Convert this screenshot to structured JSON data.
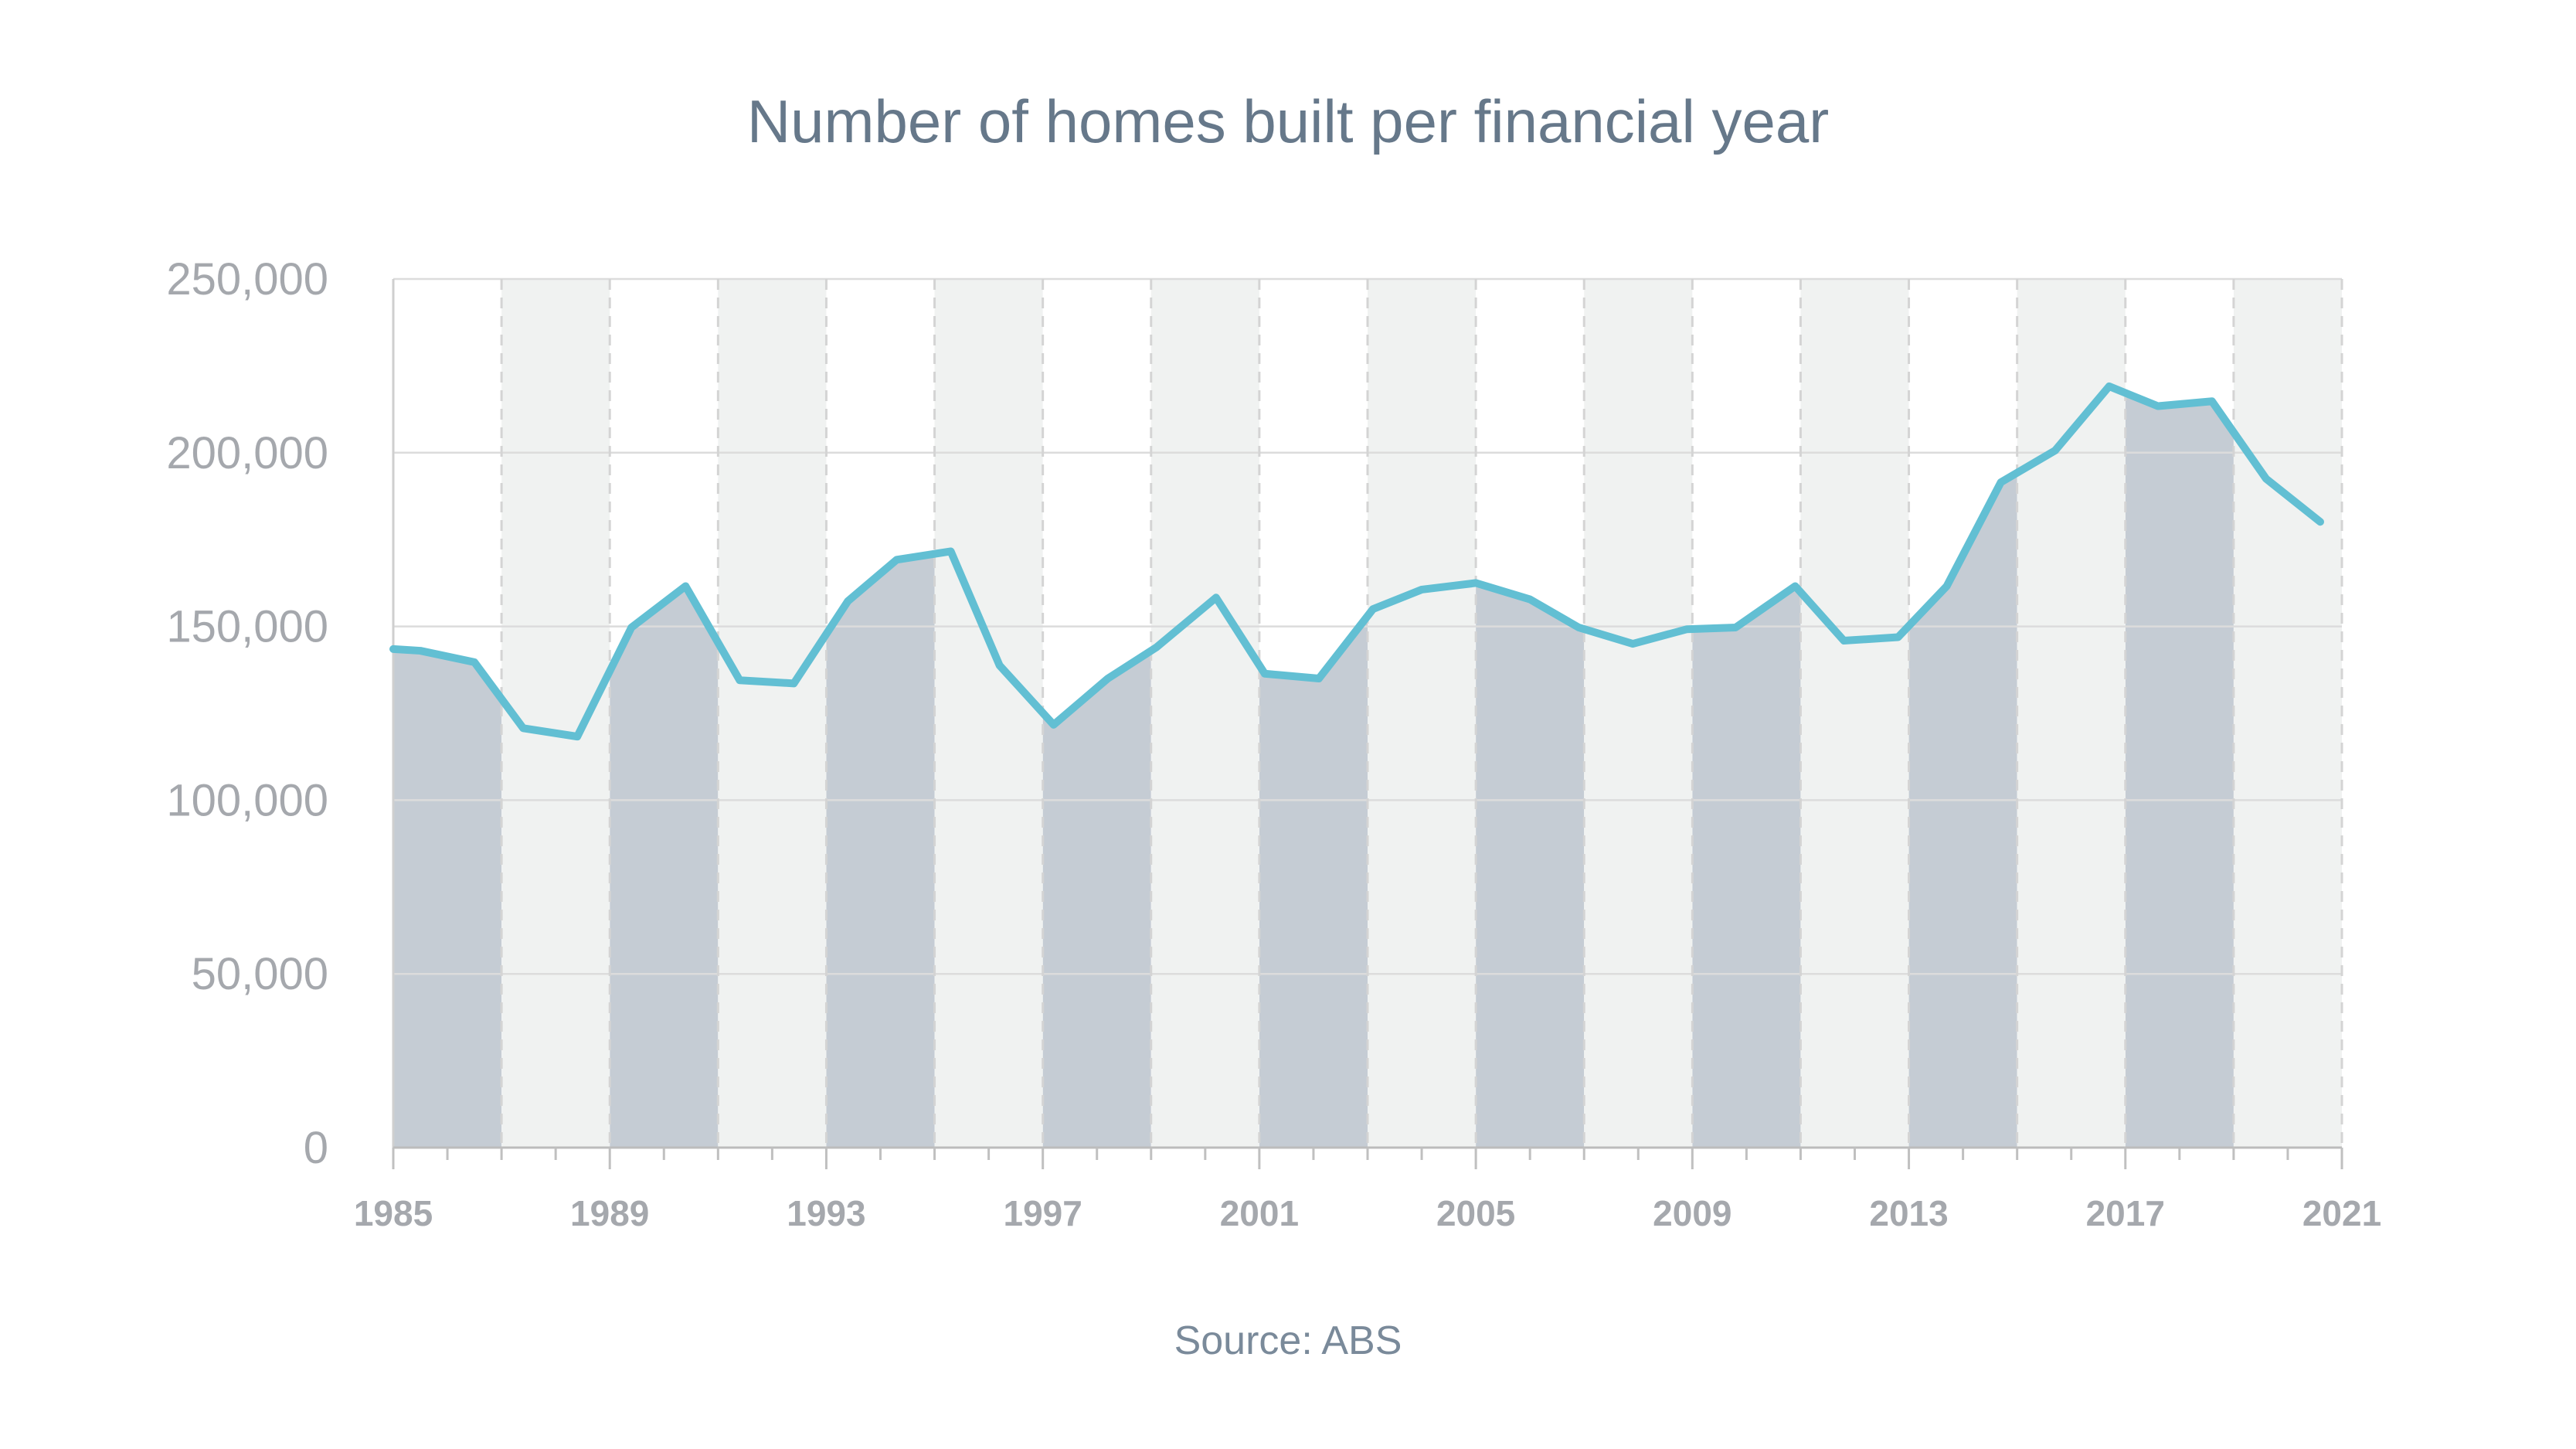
{
  "chart_data": {
    "type": "line",
    "title": "Number of homes built per financial year",
    "source": "Source: ABS",
    "xlabel": "",
    "ylabel": "",
    "xlim": [
      1985,
      2021
    ],
    "ylim": [
      0,
      250000
    ],
    "grid": true,
    "legend": "none",
    "y_ticks": [
      0,
      50000,
      100000,
      150000,
      200000,
      250000
    ],
    "y_tick_labels": [
      "0",
      "50,000",
      "100,000",
      "150,000",
      "200,000",
      "250,000"
    ],
    "x_ticks": [
      1985,
      1989,
      1993,
      1997,
      2001,
      2005,
      2009,
      2013,
      2017,
      2021
    ],
    "x_tick_labels": [
      "1985",
      "1989",
      "1993",
      "1997",
      "2001",
      "2005",
      "2009",
      "2013",
      "2017",
      "2021"
    ],
    "series": [
      {
        "name": "Homes built",
        "color": "#62bfd3",
        "x": [
          1985.0,
          1985.5,
          1986.5,
          1987.4,
          1988.4,
          1989.4,
          1990.4,
          1991.4,
          1992.4,
          1993.4,
          1994.3,
          1995.3,
          1996.2,
          1997.2,
          1998.2,
          1999.1,
          2000.2,
          2001.1,
          2002.1,
          2003.1,
          2004.0,
          2005.0,
          2006.0,
          2006.9,
          2007.9,
          2008.9,
          2009.8,
          2010.9,
          2011.8,
          2012.8,
          2013.7,
          2014.7,
          2015.7,
          2016.7,
          2017.6,
          2018.6,
          2019.6,
          2020.6
        ],
        "values": [
          143500,
          143000,
          139700,
          120700,
          118300,
          149700,
          161600,
          134500,
          133600,
          157300,
          169200,
          171600,
          138800,
          121700,
          135000,
          144000,
          158300,
          136400,
          135000,
          155000,
          160600,
          162500,
          157800,
          149700,
          145000,
          149200,
          149700,
          161600,
          145900,
          146900,
          161600,
          191500,
          200600,
          219100,
          213400,
          214800,
          192500,
          180100
        ]
      }
    ],
    "colors": {
      "band_dark": "#c5ccd4",
      "band_light": "#f0f2f1",
      "grid": "#dcdcdc",
      "title": "#66788a"
    }
  }
}
